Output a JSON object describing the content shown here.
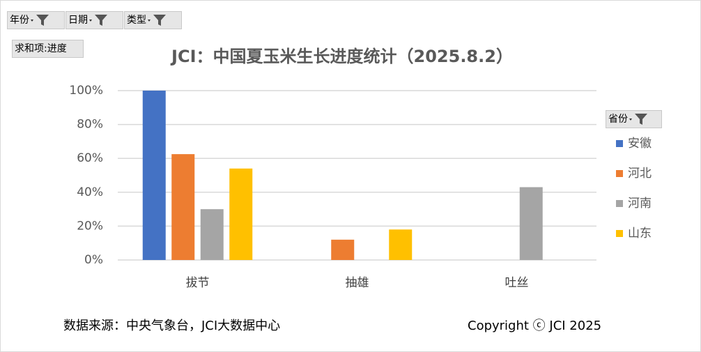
{
  "chart_data": {
    "type": "bar",
    "title": "JCI：中国夏玉米生长进度统计（2025.8.2）",
    "categories": [
      "拔节",
      "抽雄",
      "吐丝"
    ],
    "series": [
      {
        "name": "安徽",
        "color": "#4472c4",
        "values": [
          100,
          null,
          null
        ]
      },
      {
        "name": "河北",
        "color": "#ed7d31",
        "values": [
          62.5,
          12,
          null
        ]
      },
      {
        "name": "河南",
        "color": "#a5a5a5",
        "values": [
          30,
          null,
          43
        ]
      },
      {
        "name": "山东",
        "color": "#ffc000",
        "values": [
          54,
          18,
          null
        ]
      }
    ],
    "ylim": [
      0,
      100
    ],
    "yticks": [
      {
        "value": 0,
        "label": "0%"
      },
      {
        "value": 20,
        "label": "20%"
      },
      {
        "value": 40,
        "label": "40%"
      },
      {
        "value": 60,
        "label": "60%"
      },
      {
        "value": 80,
        "label": "80%"
      },
      {
        "value": 100,
        "label": "100%"
      }
    ],
    "grid": true,
    "legend_title": "省份",
    "filters": [
      "年份",
      "日期",
      "类型"
    ],
    "value_field": "求和项:进度",
    "source": "数据来源：中央气象台，JCI大数据中心",
    "copyright": "Copyright ⓒ JCI 2025"
  }
}
